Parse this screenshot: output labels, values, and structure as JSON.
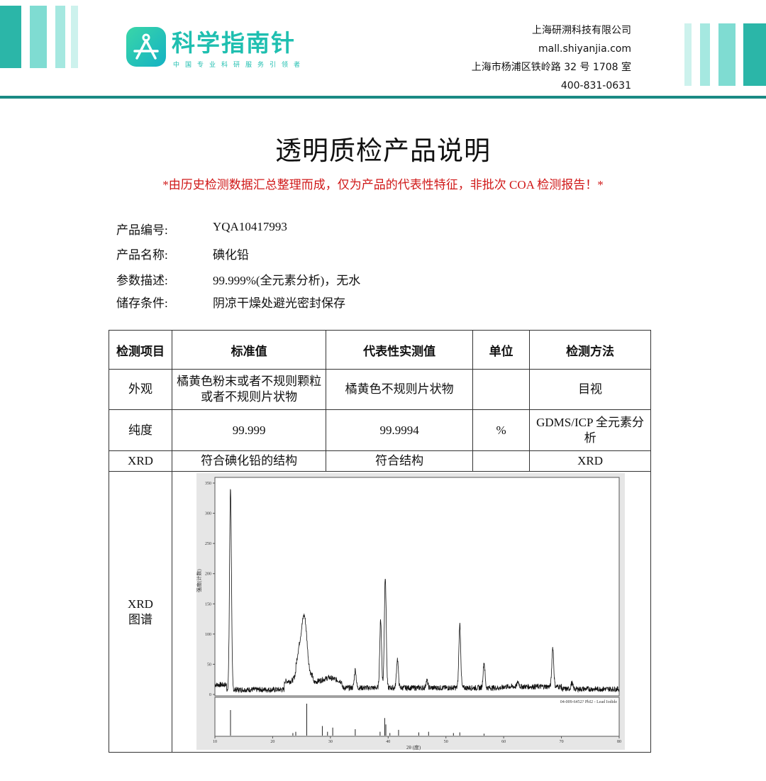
{
  "header": {
    "logo_name": "科学指南针",
    "logo_slogan": "中国专业科研服务引领者",
    "company": "上海研溯科技有限公司",
    "website": "mall.shiyanjia.com",
    "address": "上海市杨浦区铁岭路 32 号 1708 室",
    "phone": "400-831-0631",
    "brand_color": "#1fbfb0"
  },
  "title": "透明质检产品说明",
  "disclaimer": "*由历史检测数据汇总整理而成，仅为产品的代表性特征，非批次 COA 检测报告！*",
  "info": [
    {
      "label": "产品编号:",
      "value": "YQA10417993"
    },
    {
      "label": "产品名称:",
      "value": "碘化铅"
    },
    {
      "label": "参数描述:",
      "value": "99.999%(全元素分析)，无水"
    },
    {
      "label": "储存条件:",
      "value": "阴凉干燥处避光密封保存"
    }
  ],
  "table": {
    "headers": [
      "检测项目",
      "标准值",
      "代表性实测值",
      "单位",
      "检测方法"
    ],
    "rows": [
      [
        "外观",
        "橘黄色粉末或者不规则颗粒或者不规则片状物",
        "橘黄色不规则片状物",
        "",
        "目视"
      ],
      [
        "纯度",
        "99.999",
        "99.9994",
        "%",
        "GDMS/ICP 全元素分析"
      ],
      [
        "XRD",
        "符合碘化铅的结构",
        "符合结构",
        "",
        "XRD"
      ]
    ],
    "xrd_label": "XRD 图谱"
  },
  "chart_data": {
    "type": "line",
    "xlabel": "2θ (度)",
    "ylabel": "强度(计数)",
    "xlim": [
      10,
      80
    ],
    "ylim": [
      0,
      350
    ],
    "xticks": [
      10,
      20,
      30,
      40,
      50,
      60,
      70,
      80
    ],
    "yticks": [
      0,
      50,
      100,
      150,
      200,
      250,
      300,
      350
    ],
    "peaks": [
      [
        12.7,
        335
      ],
      [
        24.6,
        40
      ],
      [
        25.5,
        95
      ],
      [
        34.3,
        30
      ],
      [
        38.7,
        112
      ],
      [
        39.5,
        185
      ],
      [
        41.6,
        48
      ],
      [
        46.7,
        12
      ],
      [
        52.4,
        105
      ],
      [
        56.6,
        42
      ],
      [
        62.5,
        8
      ],
      [
        68.5,
        65
      ],
      [
        71.8,
        10
      ]
    ],
    "reference_label": "04-009-6452? PbI2 - Lead Iodide",
    "reference_sticks": [
      [
        12.7,
        80
      ],
      [
        23.5,
        8
      ],
      [
        24,
        12
      ],
      [
        25.9,
        100
      ],
      [
        28.6,
        30
      ],
      [
        29.5,
        12
      ],
      [
        30.4,
        25
      ],
      [
        34.3,
        20
      ],
      [
        38.6,
        12
      ],
      [
        39.4,
        55
      ],
      [
        39.6,
        35
      ],
      [
        40.3,
        8
      ],
      [
        41.8,
        18
      ],
      [
        45.3,
        10
      ],
      [
        47,
        12
      ],
      [
        51.3,
        8
      ],
      [
        52.4,
        10
      ],
      [
        56.6,
        6
      ]
    ],
    "grid": false
  }
}
